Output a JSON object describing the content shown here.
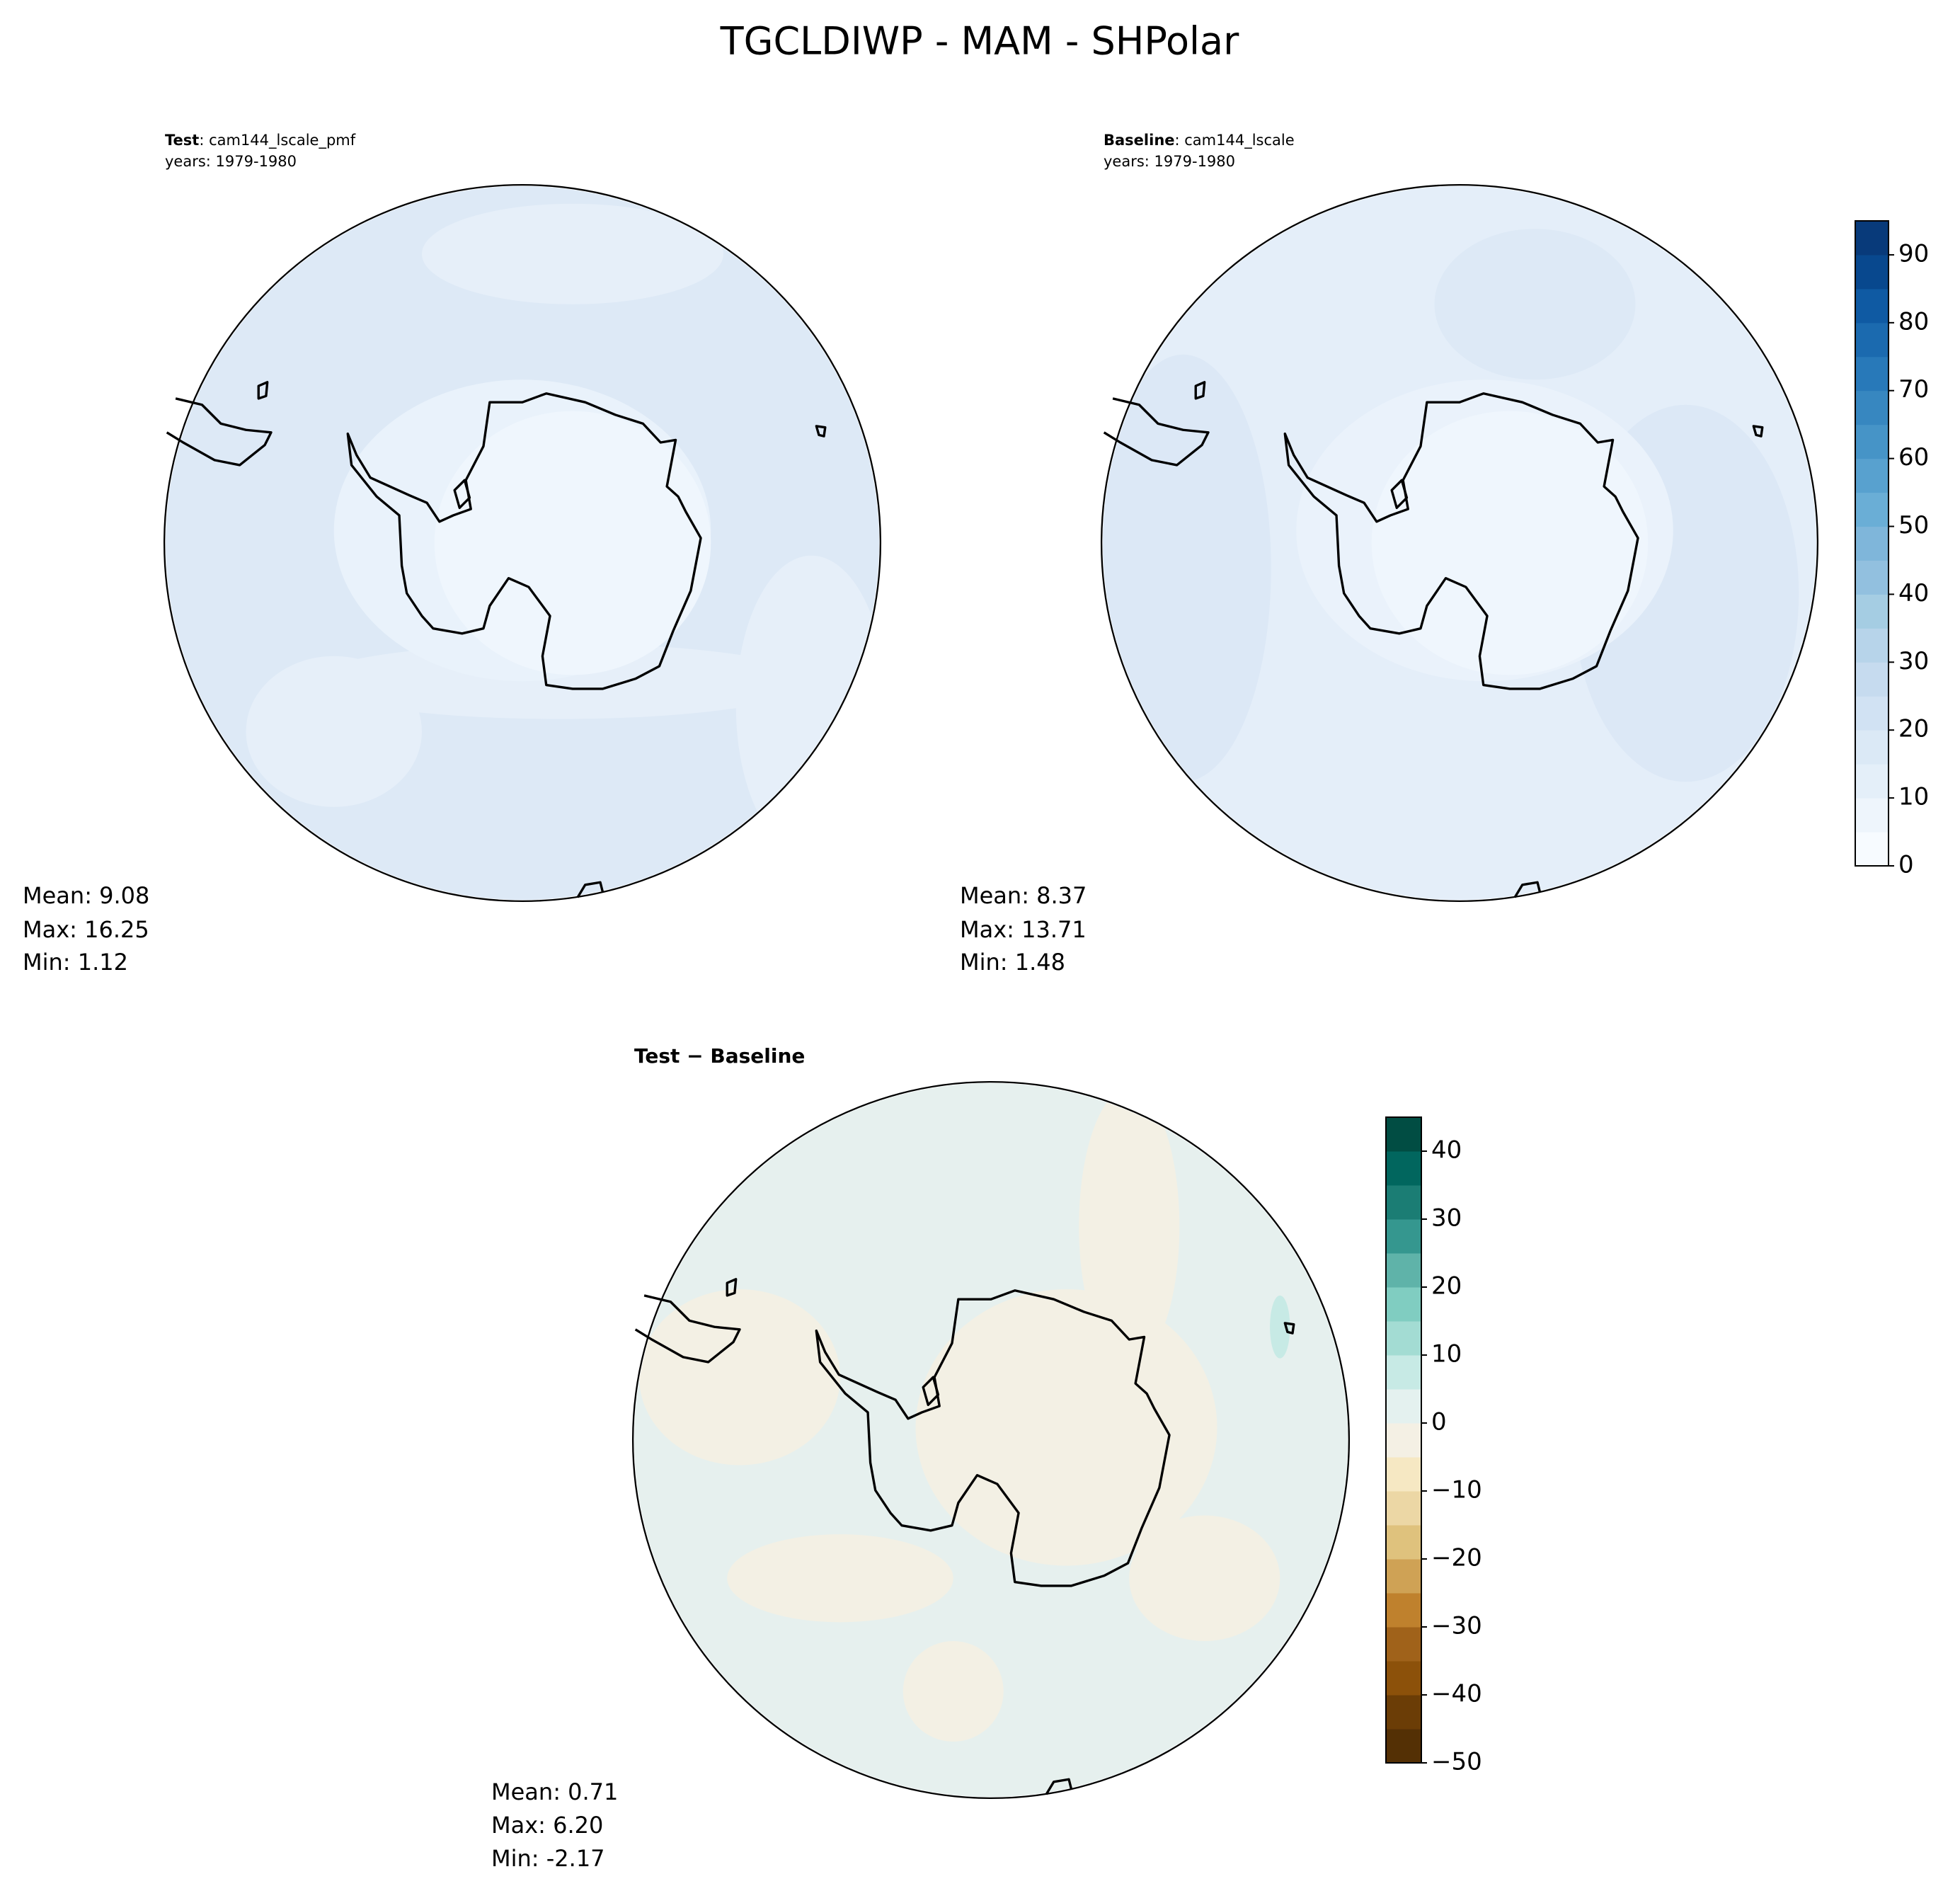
{
  "title": "TGCLDIWP - MAM - SHPolar",
  "panels": [
    {
      "name": "Test",
      "case": ": cam144_lscale_pmf",
      "years": "years: 1979-1980",
      "stats": [
        "Mean:  9.08",
        "Max: 16.25",
        "Min:  1.12"
      ]
    },
    {
      "name": "Baseline",
      "case": ": cam144_lscale",
      "years": "years: 1979-1980",
      "stats": [
        "Mean:  8.37",
        "Max: 13.71",
        "Min:  1.48"
      ]
    },
    {
      "name": "Test − Baseline",
      "stats": [
        "Mean:  0.71",
        "Max:  6.20",
        "Min: -2.17"
      ]
    }
  ],
  "colorbars": [
    {
      "lim": [
        0,
        95
      ],
      "levels": [
        0,
        5,
        10,
        15,
        20,
        25,
        30,
        35,
        40,
        45,
        50,
        55,
        60,
        65,
        70,
        75,
        80,
        85,
        90,
        95
      ],
      "colors": [
        "#f7fbff",
        "#eef5fc",
        "#e4eff9",
        "#dbe9f6",
        "#d1e2f3",
        "#c6dbef",
        "#b7d4ea",
        "#a5cde3",
        "#92c0df",
        "#7fb6da",
        "#6aaed6",
        "#58a1cf",
        "#4694c7",
        "#3787c0",
        "#2879b9",
        "#1b6aaf",
        "#0f5aa3",
        "#08488e",
        "#083a7a"
      ],
      "ticks": [
        0,
        10,
        20,
        30,
        40,
        50,
        60,
        70,
        80,
        90
      ]
    },
    {
      "lim": [
        -50,
        45
      ],
      "levels": [
        -50,
        -45,
        -40,
        -35,
        -30,
        -25,
        -20,
        -15,
        -10,
        -5,
        0,
        5,
        10,
        15,
        20,
        25,
        30,
        35,
        40,
        45
      ],
      "colors": [
        "#543005",
        "#6b3d06",
        "#8c510a",
        "#a0621a",
        "#bf812d",
        "#cfa255",
        "#dfc27d",
        "#ecd7a5",
        "#f6e8c3",
        "#f4f0e4",
        "#e4f1ef",
        "#c7eae5",
        "#a3dcd3",
        "#80cdc1",
        "#5fb3a9",
        "#35978f",
        "#1b7d74",
        "#01665e",
        "#014d43"
      ],
      "ticks": [
        {
          "value": -50,
          "label": "−50"
        },
        {
          "value": -40,
          "label": "−40"
        },
        {
          "value": -30,
          "label": "−30"
        },
        {
          "value": -20,
          "label": "−20"
        },
        {
          "value": -10,
          "label": "−10"
        },
        0,
        10,
        20,
        30,
        40
      ]
    }
  ]
}
